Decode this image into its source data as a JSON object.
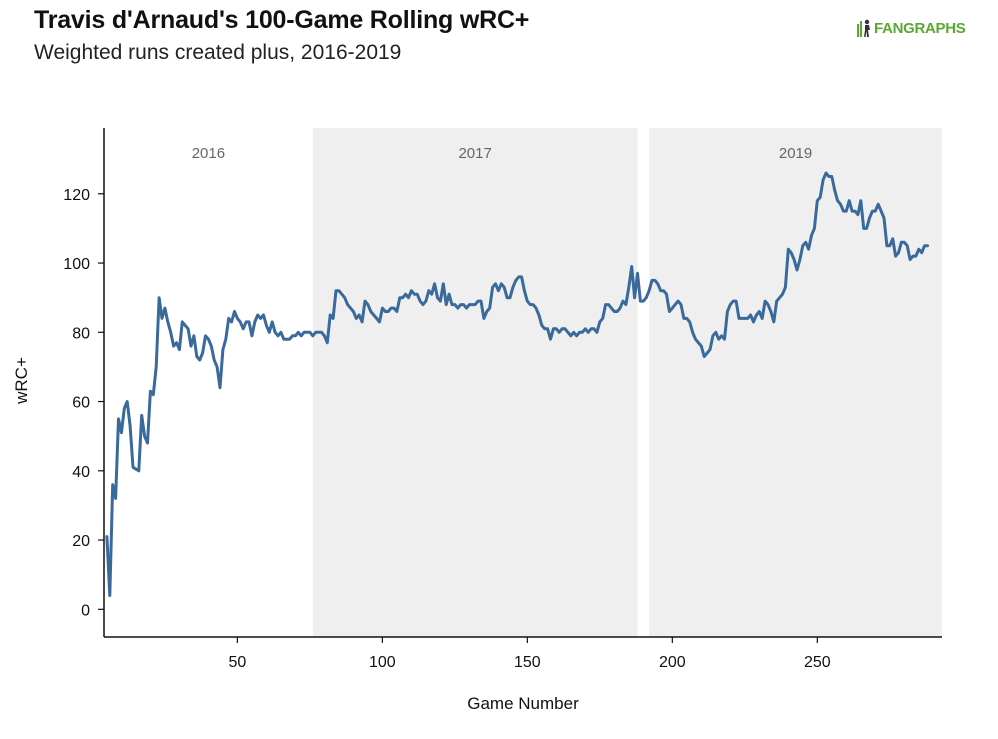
{
  "header": {
    "title": "Travis d'Arnaud's 100-Game Rolling wRC+",
    "subtitle": "Weighted runs created plus, 2016-2019",
    "logo_text": "FANGRAPHS"
  },
  "colors": {
    "line": "#3a6a9c",
    "band": "#efefef",
    "logo": "#5aa832"
  },
  "chart_data": {
    "type": "line",
    "title": "Travis d'Arnaud's 100-Game Rolling wRC+",
    "subtitle": "Weighted runs created plus, 2016-2019",
    "xlabel": "Game Number",
    "ylabel": "wRC+",
    "xlim": [
      4,
      293
    ],
    "ylim": [
      -8,
      139
    ],
    "x_ticks": [
      50,
      100,
      150,
      200,
      250
    ],
    "y_ticks": [
      0,
      20,
      40,
      60,
      80,
      100,
      120
    ],
    "grid": false,
    "seasons": [
      {
        "label": "2016",
        "start": 4,
        "end": 76,
        "shaded": false
      },
      {
        "label": "2017",
        "start": 76,
        "end": 188,
        "shaded": true
      },
      {
        "label": "2019",
        "start": 192,
        "end": 293,
        "shaded": true
      }
    ],
    "series": [
      {
        "points": [
          [
            5,
            21
          ],
          [
            6,
            4
          ],
          [
            7,
            36
          ],
          [
            8,
            32
          ],
          [
            9,
            55
          ],
          [
            10,
            51
          ],
          [
            11,
            58
          ],
          [
            12,
            60
          ],
          [
            13,
            53
          ],
          [
            14,
            41
          ],
          [
            16,
            40
          ],
          [
            17,
            56
          ],
          [
            18,
            50
          ],
          [
            19,
            48
          ],
          [
            20,
            63
          ],
          [
            21,
            62
          ],
          [
            22,
            70
          ],
          [
            23,
            90
          ],
          [
            24,
            84
          ],
          [
            25,
            87
          ],
          [
            26,
            83
          ],
          [
            27,
            80
          ],
          [
            28,
            76
          ],
          [
            29,
            77
          ],
          [
            30,
            75
          ],
          [
            31,
            83
          ],
          [
            32,
            82
          ],
          [
            33,
            81
          ],
          [
            34,
            76
          ],
          [
            35,
            79
          ],
          [
            36,
            73
          ],
          [
            37,
            72
          ],
          [
            38,
            74
          ],
          [
            39,
            79
          ],
          [
            40,
            78
          ],
          [
            41,
            76
          ],
          [
            42,
            72
          ],
          [
            43,
            70
          ],
          [
            44,
            64
          ],
          [
            45,
            75
          ],
          [
            46,
            78
          ],
          [
            47,
            84
          ],
          [
            48,
            83
          ],
          [
            49,
            86
          ],
          [
            50,
            84
          ],
          [
            51,
            83
          ],
          [
            52,
            81
          ],
          [
            53,
            83
          ],
          [
            54,
            83
          ],
          [
            55,
            79
          ],
          [
            56,
            83
          ],
          [
            57,
            85
          ],
          [
            58,
            84
          ],
          [
            59,
            85
          ],
          [
            60,
            82
          ],
          [
            61,
            80
          ],
          [
            62,
            83
          ],
          [
            63,
            80
          ],
          [
            64,
            79
          ],
          [
            65,
            80
          ],
          [
            66,
            78
          ],
          [
            67,
            78
          ],
          [
            68,
            78
          ],
          [
            69,
            79
          ],
          [
            70,
            79
          ],
          [
            71,
            80
          ],
          [
            72,
            79
          ],
          [
            73,
            80
          ],
          [
            74,
            80
          ],
          [
            75,
            80
          ],
          [
            76,
            79
          ],
          [
            77,
            80
          ],
          [
            78,
            80
          ],
          [
            79,
            80
          ],
          [
            80,
            79
          ],
          [
            81,
            77
          ],
          [
            82,
            85
          ],
          [
            83,
            84
          ],
          [
            84,
            92
          ],
          [
            85,
            92
          ],
          [
            86,
            91
          ],
          [
            87,
            90
          ],
          [
            88,
            88
          ],
          [
            89,
            87
          ],
          [
            90,
            86
          ],
          [
            91,
            84
          ],
          [
            92,
            85
          ],
          [
            93,
            83
          ],
          [
            94,
            89
          ],
          [
            95,
            88
          ],
          [
            96,
            86
          ],
          [
            97,
            85
          ],
          [
            98,
            84
          ],
          [
            99,
            83
          ],
          [
            100,
            87
          ],
          [
            101,
            86
          ],
          [
            102,
            86
          ],
          [
            103,
            87
          ],
          [
            104,
            87
          ],
          [
            105,
            86
          ],
          [
            106,
            90
          ],
          [
            107,
            90
          ],
          [
            108,
            91
          ],
          [
            109,
            90
          ],
          [
            110,
            92
          ],
          [
            111,
            91
          ],
          [
            112,
            91
          ],
          [
            113,
            89
          ],
          [
            114,
            88
          ],
          [
            115,
            89
          ],
          [
            116,
            92
          ],
          [
            117,
            91
          ],
          [
            118,
            94
          ],
          [
            119,
            90
          ],
          [
            120,
            89
          ],
          [
            121,
            94
          ],
          [
            122,
            88
          ],
          [
            123,
            91
          ],
          [
            124,
            88
          ],
          [
            125,
            88
          ],
          [
            126,
            87
          ],
          [
            127,
            88
          ],
          [
            128,
            88
          ],
          [
            129,
            87
          ],
          [
            130,
            88
          ],
          [
            131,
            88
          ],
          [
            132,
            88
          ],
          [
            133,
            89
          ],
          [
            134,
            89
          ],
          [
            135,
            84
          ],
          [
            136,
            86
          ],
          [
            137,
            87
          ],
          [
            138,
            93
          ],
          [
            139,
            94
          ],
          [
            140,
            92
          ],
          [
            141,
            94
          ],
          [
            142,
            93
          ],
          [
            143,
            90
          ],
          [
            144,
            90
          ],
          [
            145,
            93
          ],
          [
            146,
            95
          ],
          [
            147,
            96
          ],
          [
            148,
            96
          ],
          [
            149,
            92
          ],
          [
            150,
            89
          ],
          [
            151,
            88
          ],
          [
            152,
            88
          ],
          [
            153,
            87
          ],
          [
            154,
            85
          ],
          [
            155,
            82
          ],
          [
            156,
            81
          ],
          [
            157,
            81
          ],
          [
            158,
            78
          ],
          [
            159,
            81
          ],
          [
            160,
            81
          ],
          [
            161,
            80
          ],
          [
            162,
            81
          ],
          [
            163,
            81
          ],
          [
            164,
            80
          ],
          [
            165,
            79
          ],
          [
            166,
            80
          ],
          [
            167,
            79
          ],
          [
            168,
            80
          ],
          [
            169,
            80
          ],
          [
            170,
            81
          ],
          [
            171,
            80
          ],
          [
            172,
            81
          ],
          [
            173,
            81
          ],
          [
            174,
            80
          ],
          [
            175,
            83
          ],
          [
            176,
            84
          ],
          [
            177,
            88
          ],
          [
            178,
            88
          ],
          [
            179,
            87
          ],
          [
            180,
            86
          ],
          [
            181,
            86
          ],
          [
            182,
            87
          ],
          [
            183,
            89
          ],
          [
            184,
            88
          ],
          [
            185,
            93
          ],
          [
            186,
            99
          ],
          [
            187,
            90
          ],
          [
            188,
            97
          ],
          [
            189,
            89
          ],
          [
            190,
            89
          ],
          [
            191,
            90
          ],
          [
            192,
            92
          ],
          [
            193,
            95
          ],
          [
            194,
            95
          ],
          [
            195,
            94
          ],
          [
            196,
            92
          ],
          [
            197,
            92
          ],
          [
            198,
            91
          ],
          [
            199,
            86
          ],
          [
            200,
            87
          ],
          [
            201,
            88
          ],
          [
            202,
            89
          ],
          [
            203,
            88
          ],
          [
            204,
            84
          ],
          [
            205,
            84
          ],
          [
            206,
            83
          ],
          [
            207,
            80
          ],
          [
            208,
            78
          ],
          [
            209,
            77
          ],
          [
            210,
            76
          ],
          [
            211,
            73
          ],
          [
            212,
            74
          ],
          [
            213,
            75
          ],
          [
            214,
            79
          ],
          [
            215,
            80
          ],
          [
            216,
            78
          ],
          [
            217,
            79
          ],
          [
            218,
            78
          ],
          [
            219,
            86
          ],
          [
            220,
            88
          ],
          [
            221,
            89
          ],
          [
            222,
            89
          ],
          [
            223,
            84
          ],
          [
            224,
            84
          ],
          [
            225,
            84
          ],
          [
            226,
            84
          ],
          [
            227,
            85
          ],
          [
            228,
            83
          ],
          [
            229,
            85
          ],
          [
            230,
            86
          ],
          [
            231,
            84
          ],
          [
            232,
            89
          ],
          [
            233,
            88
          ],
          [
            234,
            86
          ],
          [
            235,
            83
          ],
          [
            236,
            89
          ],
          [
            237,
            90
          ],
          [
            238,
            91
          ],
          [
            239,
            93
          ],
          [
            240,
            104
          ],
          [
            241,
            103
          ],
          [
            242,
            101
          ],
          [
            243,
            98
          ],
          [
            244,
            101
          ],
          [
            245,
            105
          ],
          [
            246,
            106
          ],
          [
            247,
            104
          ],
          [
            248,
            108
          ],
          [
            249,
            110
          ],
          [
            250,
            118
          ],
          [
            251,
            119
          ],
          [
            252,
            124
          ],
          [
            253,
            126
          ],
          [
            254,
            125
          ],
          [
            255,
            125
          ],
          [
            256,
            121
          ],
          [
            257,
            118
          ],
          [
            258,
            117
          ],
          [
            259,
            115
          ],
          [
            260,
            115
          ],
          [
            261,
            118
          ],
          [
            262,
            115
          ],
          [
            263,
            115
          ],
          [
            264,
            114
          ],
          [
            265,
            118
          ],
          [
            266,
            110
          ],
          [
            267,
            110
          ],
          [
            268,
            113
          ],
          [
            269,
            115
          ],
          [
            270,
            115
          ],
          [
            271,
            117
          ],
          [
            272,
            115
          ],
          [
            273,
            113
          ],
          [
            274,
            105
          ],
          [
            275,
            105
          ],
          [
            276,
            107
          ],
          [
            277,
            102
          ],
          [
            278,
            103
          ],
          [
            279,
            106
          ],
          [
            280,
            106
          ],
          [
            281,
            105
          ],
          [
            282,
            101
          ],
          [
            283,
            102
          ],
          [
            284,
            102
          ],
          [
            285,
            104
          ],
          [
            286,
            103
          ],
          [
            287,
            105
          ],
          [
            288,
            105
          ]
        ]
      }
    ]
  }
}
